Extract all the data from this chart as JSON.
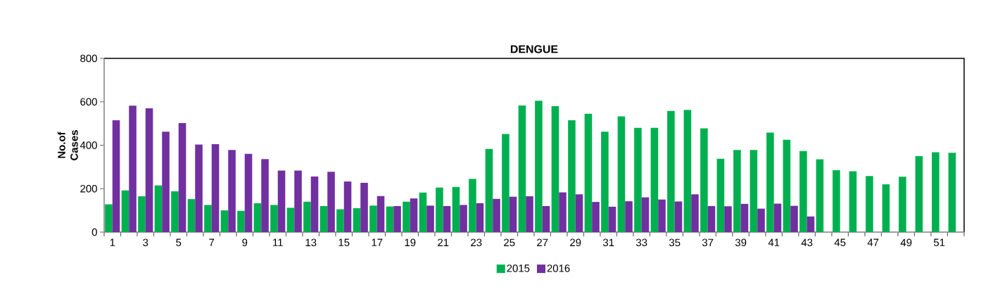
{
  "chart_data": {
    "type": "bar",
    "title": "DENGUE",
    "ylabel": "No.of Cases",
    "categories": [
      "1",
      null,
      "3",
      null,
      "5",
      null,
      "7",
      null,
      "9",
      null,
      "11",
      null,
      "13",
      null,
      "15",
      null,
      "17",
      null,
      "19",
      null,
      "21",
      null,
      "23",
      null,
      "25",
      null,
      "27",
      null,
      "29",
      null,
      "31",
      null,
      "33",
      null,
      "35",
      null,
      "37",
      null,
      "39",
      null,
      "41",
      null,
      "43",
      null,
      "45",
      null,
      "47",
      null,
      "49",
      null,
      "51",
      null
    ],
    "series": [
      {
        "name": "2015",
        "color": "#00b050",
        "values": [
          128,
          192,
          165,
          215,
          188,
          152,
          125,
          100,
          98,
          133,
          125,
          112,
          140,
          120,
          105,
          110,
          122,
          118,
          140,
          182,
          205,
          208,
          245,
          383,
          452,
          583,
          605,
          580,
          515,
          545,
          462,
          533,
          480,
          480,
          558,
          563,
          478,
          338,
          378,
          378,
          458,
          425,
          373,
          335,
          285,
          280,
          258,
          220,
          255,
          350,
          368,
          365
        ]
      },
      {
        "name": "2016",
        "color": "#7030a0",
        "values": [
          515,
          582,
          570,
          462,
          502,
          403,
          405,
          378,
          360,
          336,
          283,
          283,
          256,
          278,
          233,
          227,
          166,
          120,
          155,
          122,
          120,
          125,
          133,
          153,
          163,
          165,
          120,
          183,
          174,
          139,
          117,
          142,
          160,
          150,
          141,
          174,
          120,
          119,
          130,
          108,
          131,
          121,
          72,
          null,
          null,
          null,
          null,
          null,
          null,
          null,
          null,
          null
        ]
      }
    ],
    "ylim": [
      0,
      800
    ],
    "yticks": [
      0,
      200,
      400,
      600,
      800
    ],
    "grid": false,
    "legend": "bottom"
  }
}
